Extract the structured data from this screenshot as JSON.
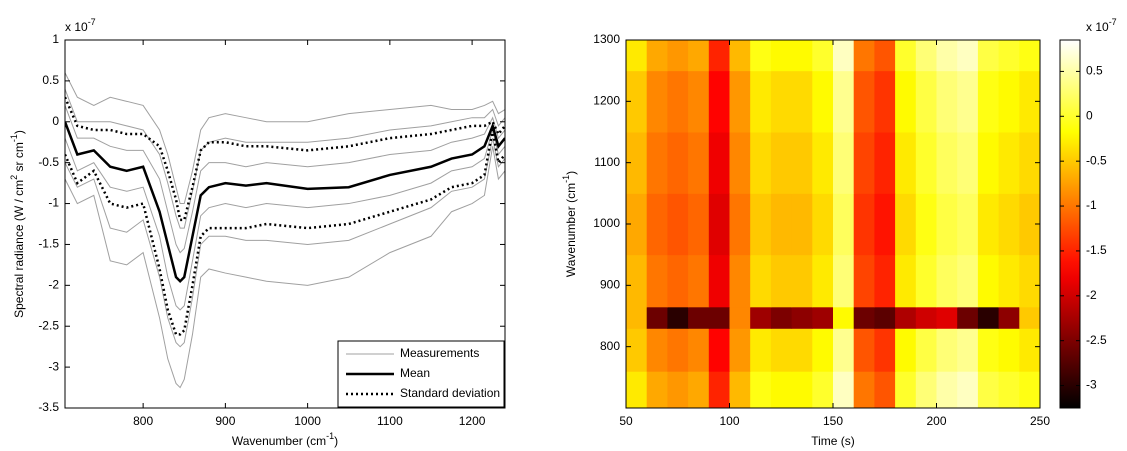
{
  "chart_data": [
    {
      "type": "line",
      "xlabel": [
        "Wavenumber (cm",
        "-1",
        ")"
      ],
      "ylabel": [
        "Spectral radiance (W / cm",
        "2",
        " sr cm",
        "-1",
        ")"
      ],
      "y_multiplier": [
        "x 10",
        "-7"
      ],
      "x": [
        705,
        720,
        740,
        760,
        780,
        800,
        820,
        830,
        840,
        845,
        850,
        860,
        870,
        880,
        900,
        925,
        950,
        1000,
        1050,
        1100,
        1150,
        1175,
        1200,
        1215,
        1225,
        1232,
        1240
      ],
      "xlim": [
        705,
        1240
      ],
      "xticks": [
        800,
        900,
        1000,
        1100,
        1200
      ],
      "ylim": [
        -3.5,
        1
      ],
      "yticks": [
        -3.5,
        -3,
        -2.5,
        -2,
        -1.5,
        -1,
        -0.5,
        0,
        0.5,
        1
      ],
      "legend": "lower right",
      "series": [
        {
          "name": "Measurements",
          "color": "#a0a0a0",
          "line_style": "solid",
          "line_width": 1,
          "lines": [
            [
              0.6,
              0.3,
              0.2,
              0.3,
              0.25,
              0.2,
              -0.1,
              -0.4,
              -0.8,
              -1.0,
              -1.0,
              -0.6,
              -0.1,
              0.05,
              0.1,
              0.05,
              0.0,
              0.0,
              0.1,
              0.15,
              0.2,
              0.15,
              0.15,
              0.2,
              0.25,
              0.1,
              0.15
            ],
            [
              0.4,
              0.0,
              0.0,
              0.0,
              -0.05,
              -0.1,
              -0.4,
              -0.75,
              -1.15,
              -1.3,
              -1.3,
              -0.85,
              -0.35,
              -0.25,
              -0.2,
              -0.25,
              -0.25,
              -0.25,
              -0.2,
              -0.1,
              -0.05,
              0.0,
              0.05,
              0.05,
              0.15,
              -0.05,
              0.05
            ],
            [
              0.2,
              -0.2,
              -0.2,
              -0.3,
              -0.35,
              -0.35,
              -0.7,
              -1.1,
              -1.5,
              -1.6,
              -1.55,
              -1.1,
              -0.6,
              -0.5,
              -0.5,
              -0.55,
              -0.5,
              -0.55,
              -0.5,
              -0.4,
              -0.35,
              -0.25,
              -0.2,
              -0.15,
              0.05,
              -0.2,
              -0.1
            ],
            [
              -0.2,
              -0.6,
              -0.5,
              -0.8,
              -0.85,
              -0.8,
              -1.4,
              -1.9,
              -2.25,
              -2.3,
              -2.25,
              -1.7,
              -1.15,
              -1.05,
              -1.0,
              -1.05,
              -1.0,
              -1.05,
              -1.0,
              -0.9,
              -0.75,
              -0.6,
              -0.55,
              -0.45,
              -0.1,
              -0.4,
              -0.3
            ],
            [
              -0.5,
              -0.8,
              -0.7,
              -1.3,
              -1.35,
              -1.2,
              -1.9,
              -2.4,
              -2.7,
              -2.75,
              -2.7,
              -2.15,
              -1.5,
              -1.4,
              -1.4,
              -1.45,
              -1.45,
              -1.5,
              -1.45,
              -1.25,
              -1.05,
              -0.85,
              -0.8,
              -0.7,
              -0.2,
              -0.55,
              -0.45
            ],
            [
              -0.7,
              -1.0,
              -0.9,
              -1.7,
              -1.75,
              -1.6,
              -2.4,
              -2.9,
              -3.2,
              -3.25,
              -3.15,
              -2.6,
              -1.9,
              -1.8,
              -1.85,
              -1.9,
              -1.95,
              -2.0,
              -1.9,
              -1.6,
              -1.4,
              -1.1,
              -1.0,
              -0.9,
              -0.3,
              -0.7,
              -0.6
            ]
          ]
        },
        {
          "name": "Mean",
          "color": "#000000",
          "line_style": "solid",
          "line_width": 2.5,
          "lines": [
            [
              0,
              -0.4,
              -0.35,
              -0.55,
              -0.6,
              -0.55,
              -1.1,
              -1.5,
              -1.9,
              -1.95,
              -1.9,
              -1.4,
              -0.9,
              -0.8,
              -0.75,
              -0.78,
              -0.75,
              -0.82,
              -0.8,
              -0.65,
              -0.55,
              -0.45,
              -0.4,
              -0.3,
              -0.05,
              -0.3,
              -0.2
            ]
          ]
        },
        {
          "name": "Standard deviation",
          "color": "#000000",
          "line_style": "dotted",
          "line_width": 2.5,
          "lines": [
            [
              0.3,
              -0.05,
              -0.1,
              -0.1,
              -0.15,
              -0.15,
              -0.3,
              -0.6,
              -0.95,
              -1.2,
              -1.2,
              -0.8,
              -0.35,
              -0.25,
              -0.25,
              -0.3,
              -0.3,
              -0.35,
              -0.3,
              -0.2,
              -0.15,
              -0.1,
              -0.05,
              -0.05,
              0,
              -0.15,
              -0.05
            ],
            [
              -0.4,
              -0.75,
              -0.6,
              -1.0,
              -1.05,
              -1.0,
              -1.8,
              -2.3,
              -2.6,
              -2.6,
              -2.55,
              -2.0,
              -1.4,
              -1.3,
              -1.3,
              -1.3,
              -1.25,
              -1.3,
              -1.25,
              -1.1,
              -0.95,
              -0.8,
              -0.75,
              -0.65,
              -0.1,
              -0.5,
              -0.4
            ]
          ]
        }
      ]
    },
    {
      "type": "heatmap",
      "xlabel": [
        "Time (s)"
      ],
      "ylabel": [
        "Wavenumber (cm",
        "-1",
        ")"
      ],
      "colormap": "hot",
      "x_edges": [
        50,
        60,
        70,
        80,
        90,
        100,
        110,
        120,
        130,
        140,
        150,
        160,
        170,
        180,
        190,
        200,
        210,
        220,
        230,
        240,
        250
      ],
      "y_edges": [
        700,
        760,
        830,
        865,
        950,
        1050,
        1150,
        1250,
        1300
      ],
      "xlim": [
        50,
        250
      ],
      "xticks": [
        50,
        100,
        150,
        200,
        250
      ],
      "ylim": [
        700,
        1300
      ],
      "yticks": [
        800,
        900,
        1000,
        1100,
        1200,
        1300
      ],
      "z": [
        [
          -0.3,
          -0.7,
          -0.8,
          -0.7,
          -1.5,
          -0.6,
          -0.1,
          -0.2,
          -0.2,
          0.0,
          0.6,
          -1.0,
          -1.2,
          0.0,
          0.3,
          0.5,
          0.6,
          0.1,
          0.0,
          -0.1
        ],
        [
          -0.5,
          -0.9,
          -1.0,
          -0.9,
          -1.7,
          -0.8,
          -0.3,
          -0.4,
          -0.4,
          -0.2,
          0.4,
          -1.2,
          -1.4,
          -0.2,
          0.1,
          0.3,
          0.4,
          -0.1,
          -0.2,
          -0.3
        ],
        [
          -0.6,
          -2.6,
          -3.0,
          -2.6,
          -2.6,
          -0.9,
          -2.3,
          -2.5,
          -2.4,
          -2.3,
          -0.2,
          -2.6,
          -2.7,
          -2.2,
          -2.0,
          -1.9,
          -2.6,
          -3.0,
          -2.4,
          -0.5
        ],
        [
          -0.6,
          -1.0,
          -1.1,
          -1.0,
          -1.8,
          -0.9,
          -0.4,
          -0.5,
          -0.5,
          -0.3,
          0.3,
          -1.3,
          -1.5,
          -0.3,
          0.0,
          0.2,
          0.3,
          -0.2,
          -0.3,
          -0.4
        ],
        [
          -0.7,
          -1.1,
          -1.2,
          -1.1,
          -1.9,
          -1.0,
          -0.5,
          -0.6,
          -0.6,
          -0.4,
          0.2,
          -1.4,
          -1.6,
          -0.4,
          -0.1,
          0.1,
          0.2,
          -0.3,
          -0.4,
          -0.5
        ],
        [
          -0.6,
          -1.0,
          -1.1,
          -1.0,
          -1.8,
          -0.9,
          -0.4,
          -0.5,
          -0.5,
          -0.3,
          0.3,
          -1.3,
          -1.5,
          -0.3,
          0.0,
          0.2,
          0.3,
          -0.2,
          -0.3,
          -0.4
        ],
        [
          -0.5,
          -0.9,
          -1.0,
          -0.9,
          -1.7,
          -0.8,
          -0.3,
          -0.4,
          -0.4,
          -0.2,
          0.4,
          -1.2,
          -1.4,
          -0.2,
          0.1,
          0.3,
          0.4,
          -0.1,
          -0.2,
          -0.3
        ],
        [
          -0.3,
          -0.7,
          -0.8,
          -0.7,
          -1.5,
          -0.6,
          -0.1,
          -0.2,
          -0.2,
          0.0,
          0.6,
          -1.0,
          -1.2,
          0.0,
          0.3,
          0.5,
          0.6,
          0.1,
          0.0,
          -0.1
        ]
      ],
      "clim": [
        -3.25,
        0.85
      ],
      "cticks": [
        -3,
        -2.5,
        -2,
        -1.5,
        -1,
        -0.5,
        0,
        0.5
      ],
      "c_multiplier": [
        "x 10",
        "-7"
      ]
    }
  ]
}
